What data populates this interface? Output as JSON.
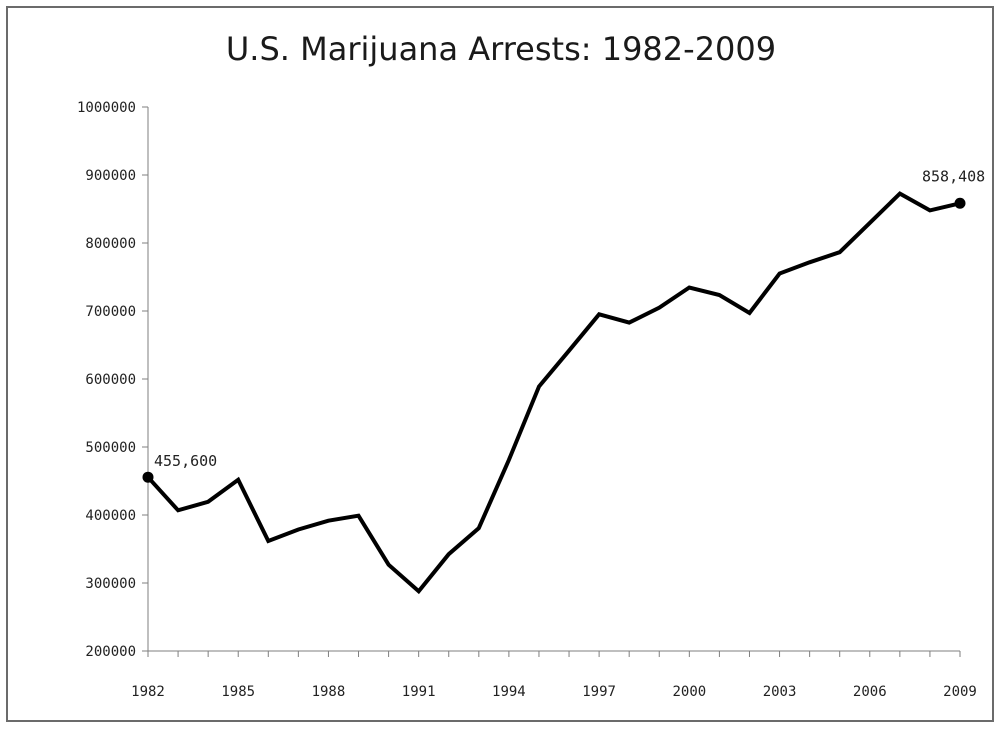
{
  "chart_data": {
    "type": "line",
    "title": "U.S. Marijuana Arrests: 1982-2009",
    "xlabel": "",
    "ylabel": "",
    "xlim": [
      1982,
      2009
    ],
    "ylim": [
      200000,
      1000000
    ],
    "y_ticks": [
      "200000",
      "300000",
      "400000",
      "500000",
      "600000",
      "700000",
      "800000",
      "900000",
      "1000000"
    ],
    "x_ticks": [
      "1982",
      "1985",
      "1988",
      "1991",
      "1994",
      "1997",
      "2000",
      "2003",
      "2006",
      "2009"
    ],
    "grid": false,
    "legend": "none",
    "line_color": "#000000",
    "series": [
      {
        "x": [
          1982,
          1983,
          1984,
          1985,
          1986,
          1987,
          1988,
          1989,
          1990,
          1991,
          1992,
          1993,
          1994,
          1995,
          1996,
          1997,
          1998,
          1999,
          2000,
          2001,
          2002,
          2003,
          2004,
          2005,
          2006,
          2007,
          2008,
          2009
        ],
        "values": [
          455600,
          406900,
          419400,
          451800,
          361800,
          378700,
          391600,
          399000,
          326900,
          287900,
          342300,
          380700,
          481100,
          588900,
          641600,
          695200,
          682900,
          704800,
          734500,
          723600,
          697100,
          755200,
          771600,
          786500,
          829600,
          872700,
          847900,
          858408
        ]
      }
    ],
    "annotations": [
      {
        "label": "455,600",
        "x": 1982,
        "y": 455600
      },
      {
        "label": "858,408",
        "x": 2009,
        "y": 858408
      }
    ]
  }
}
